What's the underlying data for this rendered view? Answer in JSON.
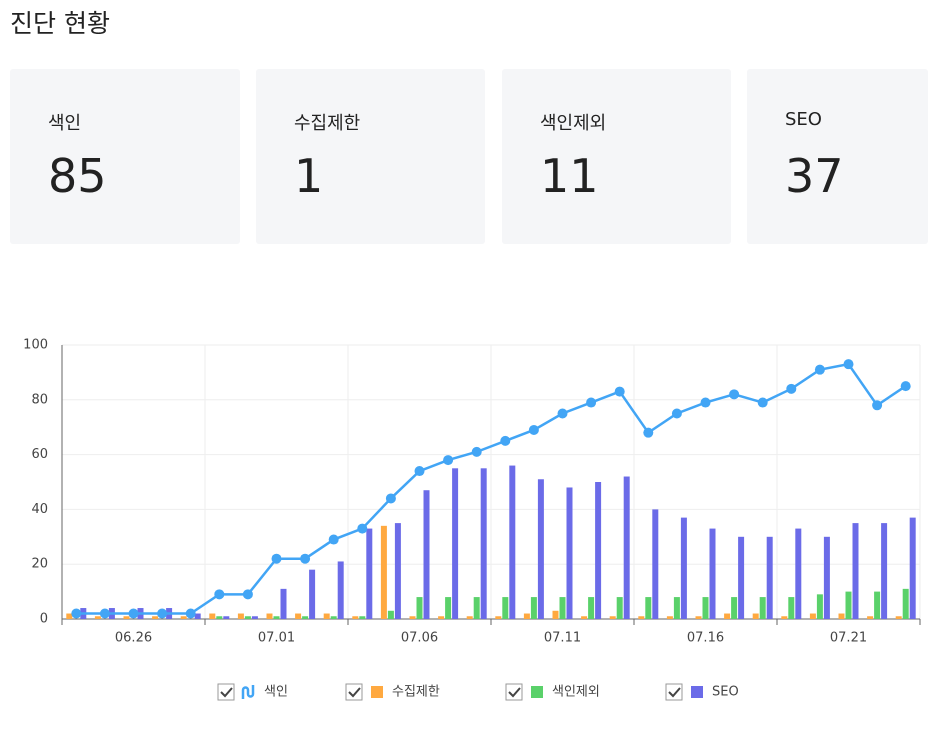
{
  "header": {
    "title": "진단 현황"
  },
  "cards": [
    {
      "label": "색인",
      "value": 85
    },
    {
      "label": "수집제한",
      "value": 1
    },
    {
      "label": "색인제외",
      "value": 11
    },
    {
      "label": "SEO",
      "value": 37
    }
  ],
  "chart_data": {
    "type": "bar-line",
    "categories": [
      null,
      null,
      "06.26",
      null,
      null,
      null,
      null,
      "07.01",
      null,
      null,
      null,
      null,
      "07.06",
      null,
      null,
      null,
      null,
      "07.11",
      null,
      null,
      null,
      null,
      "07.16",
      null,
      null,
      null,
      null,
      "07.21",
      null,
      null
    ],
    "series": [
      {
        "name": "색인",
        "type": "line",
        "color": "#42a5f5",
        "values": [
          2,
          2,
          2,
          2,
          2,
          9,
          9,
          22,
          22,
          29,
          33,
          44,
          54,
          58,
          61,
          65,
          69,
          75,
          79,
          83,
          68,
          75,
          79,
          82,
          79,
          84,
          91,
          93,
          78,
          85
        ]
      },
      {
        "name": "수집제한",
        "type": "bar",
        "color": "#ffa940",
        "values": [
          2,
          1,
          1,
          1,
          1,
          2,
          2,
          2,
          2,
          2,
          1,
          34,
          1,
          1,
          1,
          1,
          2,
          3,
          1,
          1,
          1,
          1,
          1,
          2,
          2,
          1,
          2,
          2,
          1,
          1
        ]
      },
      {
        "name": "색인제외",
        "type": "bar",
        "color": "#5ad16a",
        "values": [
          0,
          0,
          0,
          0,
          0,
          1,
          1,
          1,
          1,
          1,
          1,
          3,
          8,
          8,
          8,
          8,
          8,
          8,
          8,
          8,
          8,
          8,
          8,
          8,
          8,
          8,
          9,
          10,
          10,
          11
        ]
      },
      {
        "name": "SEO",
        "type": "bar",
        "color": "#6b6be8",
        "values": [
          4,
          4,
          4,
          4,
          2,
          1,
          1,
          11,
          18,
          21,
          33,
          35,
          47,
          55,
          55,
          56,
          51,
          48,
          50,
          52,
          40,
          37,
          33,
          30,
          30,
          33,
          30,
          35,
          35,
          37
        ]
      }
    ],
    "ylim": [
      0,
      100
    ],
    "yticks": [
      0,
      20,
      40,
      60,
      80,
      100
    ],
    "grid": true
  }
}
